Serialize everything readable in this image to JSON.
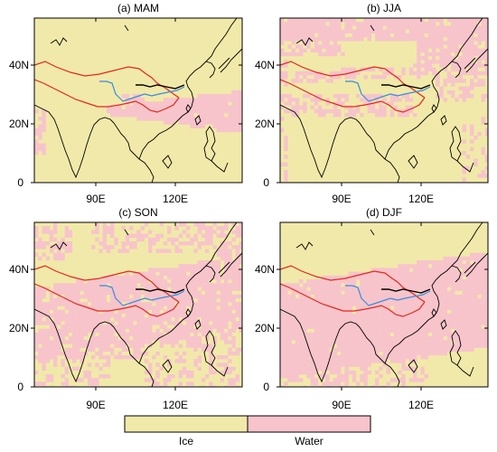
{
  "colors": {
    "ice": "#f1e9a9",
    "water": "#f7c4cb",
    "frame": "#000000",
    "plateau": "#e8261d",
    "river_yangtze": "#3b8be3",
    "river_yellow": "#000000"
  },
  "x_ticks": [
    "90E",
    "120E"
  ],
  "y_ticks": [
    "40N",
    "20N",
    "0"
  ],
  "panels": [
    {
      "title": "(a) MAM",
      "season": "MAM"
    },
    {
      "title": "(b) JJA",
      "season": "JJA"
    },
    {
      "title": "(c) SON",
      "season": "SON"
    },
    {
      "title": "(d) DJF",
      "season": "DJF"
    }
  ],
  "legend": {
    "labels": [
      "Ice",
      "Water"
    ]
  }
}
